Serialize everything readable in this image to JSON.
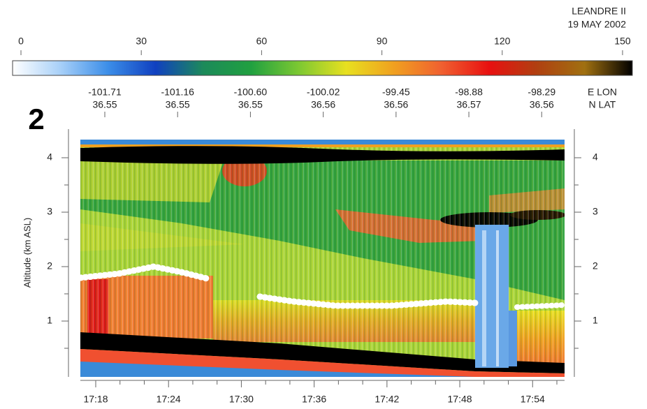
{
  "chart_data": {
    "type": "heatmap",
    "title": "LEANDRE II",
    "subtitle": "19 MAY 2002",
    "panel_label": "2",
    "colorbar": {
      "lim": [
        0,
        150
      ],
      "ticks": [
        0,
        30,
        60,
        90,
        120,
        150
      ],
      "colors": [
        "#ffffff",
        "#a8d0f8",
        "#3c8ee8",
        "#1040c0",
        "#1c8a5a",
        "#20a040",
        "#7cc832",
        "#e8e020",
        "#f0a020",
        "#f06030",
        "#e81010",
        "#b04010",
        "#a07010",
        "#000000"
      ]
    },
    "x_top": {
      "lon_label": "E LON",
      "lat_label": "N LAT",
      "lon": [
        "-101.71",
        "-101.16",
        "-100.60",
        "-100.02",
        "-99.45",
        "-98.88",
        "-98.29"
      ],
      "lat": [
        "36.55",
        "36.55",
        "36.55",
        "36.56",
        "36.56",
        "36.57",
        "36.56"
      ]
    },
    "categories": [
      "17:18",
      "17:24",
      "17:30",
      "17:36",
      "17:42",
      "17:48",
      "17:54"
    ],
    "ylabel": "Altitude (km ASL)",
    "ylim": [
      0,
      4.5
    ],
    "yticks": [
      1,
      2,
      3,
      4
    ]
  }
}
